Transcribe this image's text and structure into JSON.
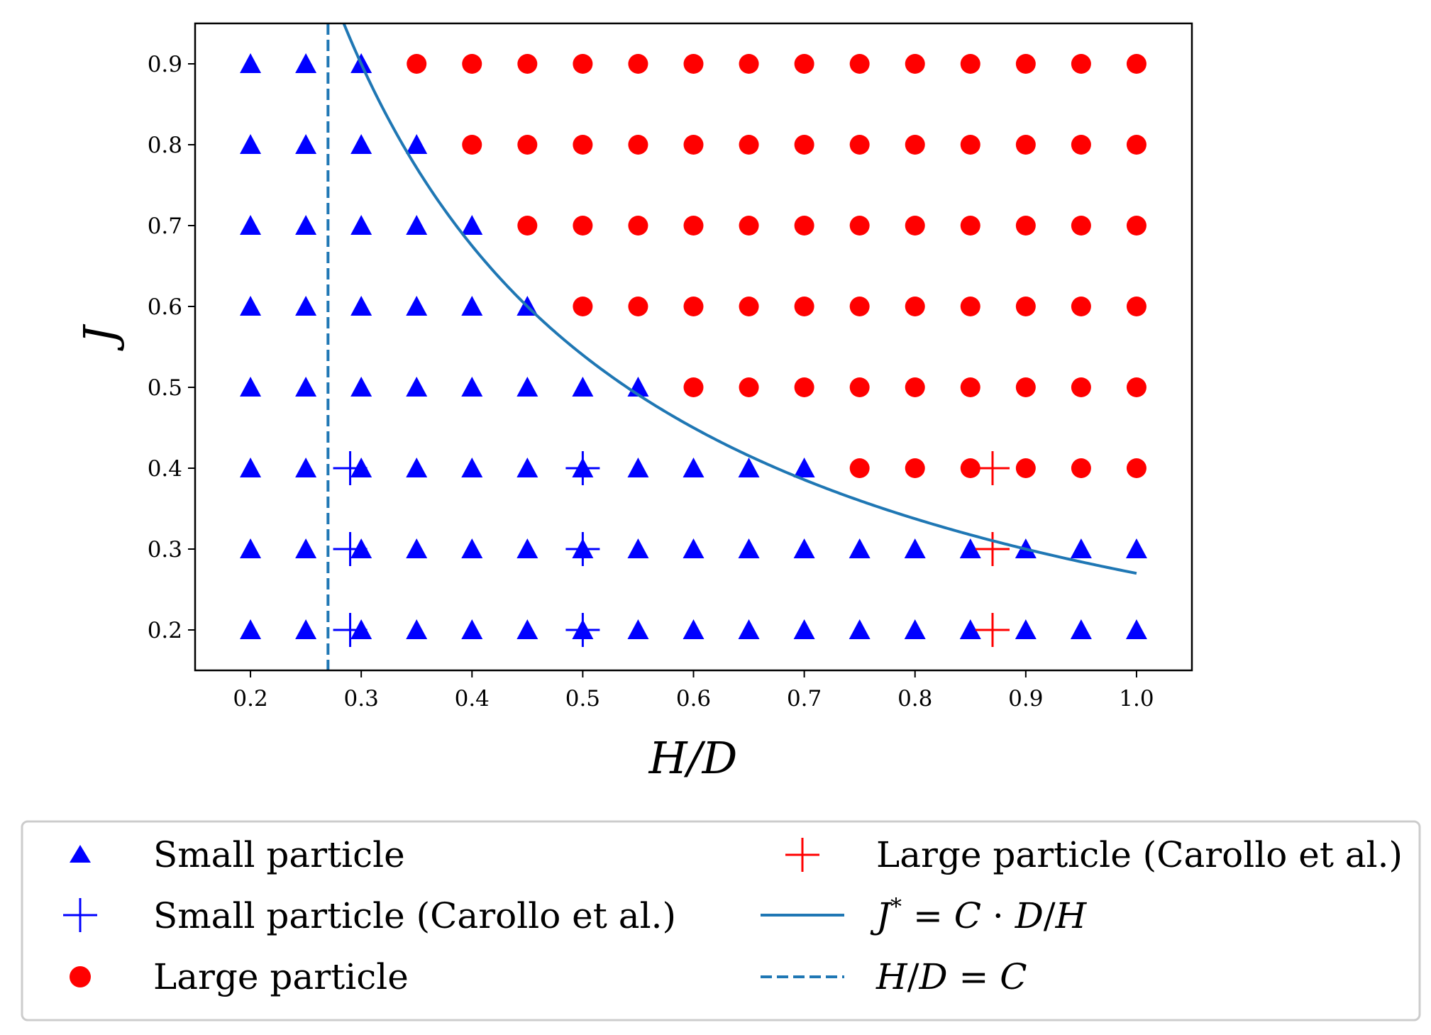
{
  "chart_data": {
    "type": "scatter",
    "title": "",
    "xlabel": "H/D",
    "ylabel": "J",
    "xlim": [
      0.15,
      1.05
    ],
    "ylim": [
      0.15,
      0.95
    ],
    "xticks": [
      "0.2",
      "0.3",
      "0.4",
      "0.5",
      "0.6",
      "0.7",
      "0.8",
      "0.9",
      "1.0"
    ],
    "yticks": [
      "0.2",
      "0.3",
      "0.4",
      "0.5",
      "0.6",
      "0.7",
      "0.8",
      "0.9"
    ],
    "grid": false,
    "legend_placement": "below",
    "C": 0.27,
    "grid_x": [
      0.2,
      0.25,
      0.3,
      0.35,
      0.4,
      0.45,
      0.5,
      0.55,
      0.6,
      0.65,
      0.7,
      0.75,
      0.8,
      0.85,
      0.9,
      0.95,
      1.0
    ],
    "grid_y": [
      0.2,
      0.3,
      0.4,
      0.5,
      0.6,
      0.7,
      0.8,
      0.9
    ],
    "small_particle_count_per_row": {
      "0.9": 3,
      "0.8": 4,
      "0.7": 5,
      "0.6": 6,
      "0.5": 8,
      "0.4": 11,
      "0.3": 17,
      "0.2": 17
    },
    "series": [
      {
        "name": "Small particle",
        "marker": "triangle",
        "color": "#0000ff",
        "points": [
          [
            0.2,
            0.9
          ],
          [
            0.25,
            0.9
          ],
          [
            0.3,
            0.9
          ],
          [
            0.2,
            0.8
          ],
          [
            0.25,
            0.8
          ],
          [
            0.3,
            0.8
          ],
          [
            0.35,
            0.8
          ],
          [
            0.2,
            0.7
          ],
          [
            0.25,
            0.7
          ],
          [
            0.3,
            0.7
          ],
          [
            0.35,
            0.7
          ],
          [
            0.4,
            0.7
          ],
          [
            0.2,
            0.6
          ],
          [
            0.25,
            0.6
          ],
          [
            0.3,
            0.6
          ],
          [
            0.35,
            0.6
          ],
          [
            0.4,
            0.6
          ],
          [
            0.45,
            0.6
          ],
          [
            0.2,
            0.5
          ],
          [
            0.25,
            0.5
          ],
          [
            0.3,
            0.5
          ],
          [
            0.35,
            0.5
          ],
          [
            0.4,
            0.5
          ],
          [
            0.45,
            0.5
          ],
          [
            0.5,
            0.5
          ],
          [
            0.55,
            0.5
          ],
          [
            0.2,
            0.4
          ],
          [
            0.25,
            0.4
          ],
          [
            0.3,
            0.4
          ],
          [
            0.35,
            0.4
          ],
          [
            0.4,
            0.4
          ],
          [
            0.45,
            0.4
          ],
          [
            0.5,
            0.4
          ],
          [
            0.55,
            0.4
          ],
          [
            0.6,
            0.4
          ],
          [
            0.65,
            0.4
          ],
          [
            0.7,
            0.4
          ],
          [
            0.2,
            0.3
          ],
          [
            0.25,
            0.3
          ],
          [
            0.3,
            0.3
          ],
          [
            0.35,
            0.3
          ],
          [
            0.4,
            0.3
          ],
          [
            0.45,
            0.3
          ],
          [
            0.5,
            0.3
          ],
          [
            0.55,
            0.3
          ],
          [
            0.6,
            0.3
          ],
          [
            0.65,
            0.3
          ],
          [
            0.7,
            0.3
          ],
          [
            0.75,
            0.3
          ],
          [
            0.8,
            0.3
          ],
          [
            0.85,
            0.3
          ],
          [
            0.9,
            0.3
          ],
          [
            0.95,
            0.3
          ],
          [
            1.0,
            0.3
          ],
          [
            0.2,
            0.2
          ],
          [
            0.25,
            0.2
          ],
          [
            0.3,
            0.2
          ],
          [
            0.35,
            0.2
          ],
          [
            0.4,
            0.2
          ],
          [
            0.45,
            0.2
          ],
          [
            0.5,
            0.2
          ],
          [
            0.55,
            0.2
          ],
          [
            0.6,
            0.2
          ],
          [
            0.65,
            0.2
          ],
          [
            0.7,
            0.2
          ],
          [
            0.75,
            0.2
          ],
          [
            0.8,
            0.2
          ],
          [
            0.85,
            0.2
          ],
          [
            0.9,
            0.2
          ],
          [
            0.95,
            0.2
          ],
          [
            1.0,
            0.2
          ]
        ]
      },
      {
        "name": "Small particle (Carollo et al.)",
        "marker": "plus",
        "color": "#0000ff",
        "points": [
          [
            0.29,
            0.4
          ],
          [
            0.29,
            0.3
          ],
          [
            0.29,
            0.2
          ],
          [
            0.5,
            0.4
          ],
          [
            0.5,
            0.3
          ],
          [
            0.5,
            0.2
          ]
        ]
      },
      {
        "name": "Large particle",
        "marker": "circle",
        "color": "#ff0000",
        "points": [
          [
            0.35,
            0.9
          ],
          [
            0.4,
            0.9
          ],
          [
            0.45,
            0.9
          ],
          [
            0.5,
            0.9
          ],
          [
            0.55,
            0.9
          ],
          [
            0.6,
            0.9
          ],
          [
            0.65,
            0.9
          ],
          [
            0.7,
            0.9
          ],
          [
            0.75,
            0.9
          ],
          [
            0.8,
            0.9
          ],
          [
            0.85,
            0.9
          ],
          [
            0.9,
            0.9
          ],
          [
            0.95,
            0.9
          ],
          [
            1.0,
            0.9
          ],
          [
            0.4,
            0.8
          ],
          [
            0.45,
            0.8
          ],
          [
            0.5,
            0.8
          ],
          [
            0.55,
            0.8
          ],
          [
            0.6,
            0.8
          ],
          [
            0.65,
            0.8
          ],
          [
            0.7,
            0.8
          ],
          [
            0.75,
            0.8
          ],
          [
            0.8,
            0.8
          ],
          [
            0.85,
            0.8
          ],
          [
            0.9,
            0.8
          ],
          [
            0.95,
            0.8
          ],
          [
            1.0,
            0.8
          ],
          [
            0.45,
            0.7
          ],
          [
            0.5,
            0.7
          ],
          [
            0.55,
            0.7
          ],
          [
            0.6,
            0.7
          ],
          [
            0.65,
            0.7
          ],
          [
            0.7,
            0.7
          ],
          [
            0.75,
            0.7
          ],
          [
            0.8,
            0.7
          ],
          [
            0.85,
            0.7
          ],
          [
            0.9,
            0.7
          ],
          [
            0.95,
            0.7
          ],
          [
            1.0,
            0.7
          ],
          [
            0.5,
            0.6
          ],
          [
            0.55,
            0.6
          ],
          [
            0.6,
            0.6
          ],
          [
            0.65,
            0.6
          ],
          [
            0.7,
            0.6
          ],
          [
            0.75,
            0.6
          ],
          [
            0.8,
            0.6
          ],
          [
            0.85,
            0.6
          ],
          [
            0.9,
            0.6
          ],
          [
            0.95,
            0.6
          ],
          [
            1.0,
            0.6
          ],
          [
            0.6,
            0.5
          ],
          [
            0.65,
            0.5
          ],
          [
            0.7,
            0.5
          ],
          [
            0.75,
            0.5
          ],
          [
            0.8,
            0.5
          ],
          [
            0.85,
            0.5
          ],
          [
            0.9,
            0.5
          ],
          [
            0.95,
            0.5
          ],
          [
            1.0,
            0.5
          ],
          [
            0.75,
            0.4
          ],
          [
            0.8,
            0.4
          ],
          [
            0.85,
            0.4
          ],
          [
            0.9,
            0.4
          ],
          [
            0.95,
            0.4
          ],
          [
            1.0,
            0.4
          ]
        ]
      },
      {
        "name": "Large particle (Carollo et al.)",
        "marker": "plus",
        "color": "#ff0000",
        "points": [
          [
            0.87,
            0.4
          ],
          [
            0.87,
            0.3
          ],
          [
            0.87,
            0.2
          ]
        ]
      },
      {
        "name": "J* = C · D/H",
        "marker": "line",
        "color": "#1f77b4",
        "x_range": [
          0.27,
          1.0
        ]
      },
      {
        "name": "H/D = C",
        "marker": "dashed",
        "color": "#1f77b4",
        "x": 0.27
      }
    ],
    "legend": {
      "small": "Small particle",
      "small_carollo": "Small particle (Carollo et al.)",
      "large": "Large particle",
      "large_carollo": "Large particle (Carollo et al.)",
      "curve_parts": [
        "J",
        "*",
        " = ",
        "C",
        " · ",
        "D",
        "/",
        "H"
      ],
      "vline_parts": [
        "H",
        "/",
        "D",
        " = ",
        "C"
      ]
    }
  }
}
